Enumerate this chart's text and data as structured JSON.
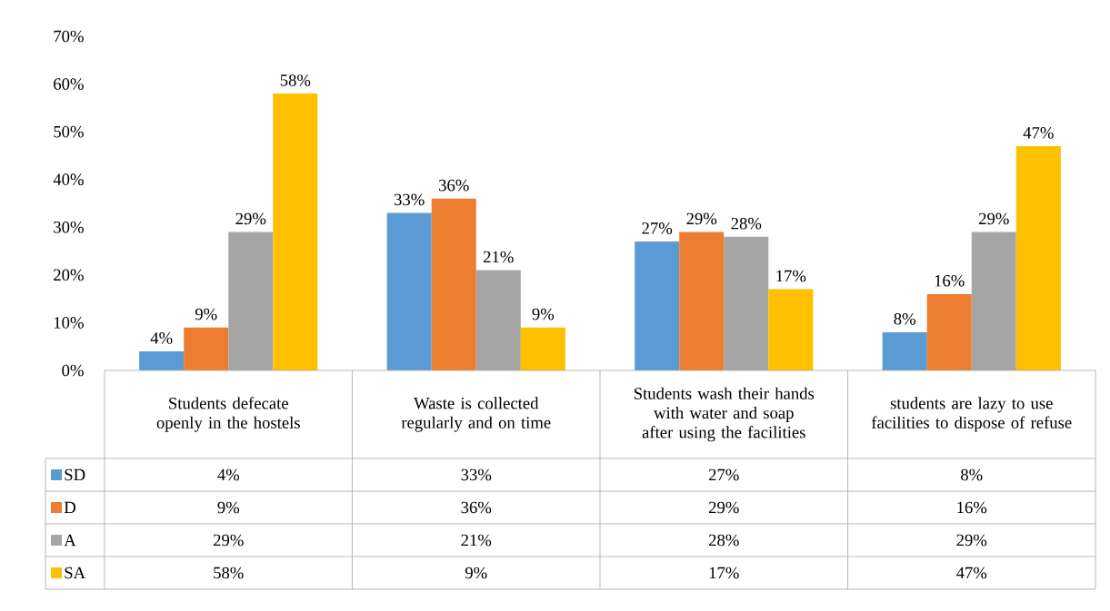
{
  "chart_data": {
    "type": "bar",
    "categories": [
      "Students defecate openly in the hostels",
      "Waste is collected regularly and on time",
      "Students wash their hands with water and soap after using the facilities",
      "students are lazy to use facilities to dispose of refuse"
    ],
    "series": [
      {
        "name": "SD",
        "color": "#5b9bd5",
        "values": [
          4,
          33,
          27,
          8
        ],
        "value_labels": [
          "4%",
          "33%",
          "27%",
          "8%"
        ]
      },
      {
        "name": "D",
        "color": "#ed7d31",
        "values": [
          9,
          36,
          29,
          16
        ],
        "value_labels": [
          "9%",
          "36%",
          "29%",
          "16%"
        ]
      },
      {
        "name": "A",
        "color": "#a5a5a5",
        "values": [
          29,
          21,
          28,
          29
        ],
        "value_labels": [
          "29%",
          "21%",
          "28%",
          "29%"
        ]
      },
      {
        "name": "SA",
        "color": "#ffc000",
        "values": [
          58,
          9,
          17,
          47
        ],
        "value_labels": [
          "58%",
          "9%",
          "17%",
          "47%"
        ]
      }
    ],
    "ylim": [
      0,
      70
    ],
    "yticks": [
      {
        "value": 0,
        "label": "0%"
      },
      {
        "value": 10,
        "label": "10%"
      },
      {
        "value": 20,
        "label": "20%"
      },
      {
        "value": 30,
        "label": "30%"
      },
      {
        "value": 40,
        "label": "40%"
      },
      {
        "value": 50,
        "label": "50%"
      },
      {
        "value": 60,
        "label": "60%"
      },
      {
        "value": 70,
        "label": "70%"
      }
    ],
    "legend": "bottom"
  }
}
